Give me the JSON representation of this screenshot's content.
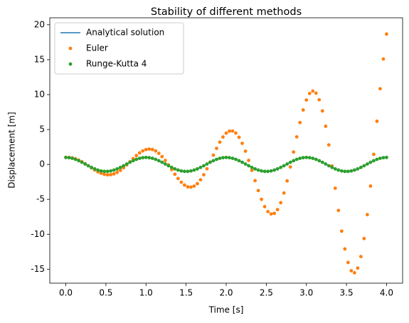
{
  "chart_data": {
    "type": "line",
    "title": "Stability of different methods",
    "xlabel": "Time [s]",
    "ylabel": "Displacement [m]",
    "x": [
      0,
      0.04,
      0.08,
      0.12,
      0.16,
      0.2,
      0.24,
      0.28,
      0.32,
      0.36,
      0.4,
      0.44,
      0.48,
      0.52,
      0.56,
      0.6,
      0.64,
      0.68,
      0.72,
      0.76,
      0.8,
      0.84,
      0.88,
      0.92,
      0.96,
      1,
      1.04,
      1.08,
      1.12,
      1.16,
      1.2,
      1.24,
      1.28,
      1.32,
      1.36,
      1.4,
      1.44,
      1.48,
      1.52,
      1.56,
      1.6,
      1.64,
      1.68,
      1.72,
      1.76,
      1.8,
      1.84,
      1.88,
      1.92,
      1.96,
      2,
      2.04,
      2.08,
      2.12,
      2.16,
      2.2,
      2.24,
      2.28,
      2.32,
      2.36,
      2.4,
      2.44,
      2.48,
      2.52,
      2.56,
      2.6,
      2.64,
      2.68,
      2.72,
      2.76,
      2.8,
      2.84,
      2.88,
      2.92,
      2.96,
      3,
      3.04,
      3.08,
      3.12,
      3.16,
      3.2,
      3.24,
      3.28,
      3.32,
      3.36,
      3.4,
      3.44,
      3.48,
      3.52,
      3.56,
      3.6,
      3.64,
      3.68,
      3.72,
      3.76,
      3.8,
      3.84,
      3.88,
      3.92,
      3.96,
      4
    ],
    "series": [
      {
        "name": "Analytical solution",
        "color": "#1f77b4",
        "style": "line",
        "values": [
          1,
          0.969,
          0.876,
          0.729,
          0.536,
          0.309,
          0.063,
          -0.187,
          -0.426,
          -0.637,
          -0.809,
          -0.93,
          -0.992,
          -0.992,
          -0.93,
          -0.809,
          -0.637,
          -0.426,
          -0.187,
          0.063,
          0.309,
          0.536,
          0.729,
          0.876,
          0.969,
          1,
          0.969,
          0.876,
          0.729,
          0.536,
          0.309,
          0.063,
          -0.187,
          -0.426,
          -0.637,
          -0.809,
          -0.93,
          -0.992,
          -0.992,
          -0.93,
          -0.809,
          -0.637,
          -0.426,
          -0.187,
          0.063,
          0.309,
          0.536,
          0.729,
          0.876,
          0.969,
          1,
          0.969,
          0.876,
          0.729,
          0.536,
          0.309,
          0.063,
          -0.187,
          -0.426,
          -0.637,
          -0.809,
          -0.93,
          -0.992,
          -0.992,
          -0.93,
          -0.809,
          -0.637,
          -0.426,
          -0.187,
          0.063,
          0.309,
          0.536,
          0.729,
          0.876,
          0.969,
          1,
          0.969,
          0.876,
          0.729,
          0.536,
          0.309,
          0.063,
          -0.187,
          -0.426,
          -0.637,
          -0.809,
          -0.93,
          -0.992,
          -0.992,
          -0.93,
          -0.809,
          -0.637,
          -0.426,
          -0.187,
          0.063,
          0.309,
          0.536,
          0.729,
          0.876,
          0.969,
          1
        ]
      },
      {
        "name": "Euler",
        "color": "#ff7f0e",
        "style": "points",
        "values": [
          1,
          1,
          0.94,
          0.81,
          0.62,
          0.39,
          0.11,
          -0.19,
          -0.5,
          -0.79,
          -1.06,
          -1.27,
          -1.42,
          -1.49,
          -1.46,
          -1.35,
          -1.14,
          -0.85,
          -0.48,
          -0.06,
          0.39,
          0.84,
          1.27,
          1.65,
          1.94,
          2.13,
          2.2,
          2.14,
          1.93,
          1.59,
          1.13,
          0.57,
          -0.07,
          -0.74,
          -1.4,
          -2.02,
          -2.55,
          -2.95,
          -3.2,
          -3.25,
          -3.1,
          -2.75,
          -2.2,
          -1.48,
          -0.62,
          0.34,
          1.33,
          2.3,
          3.19,
          3.93,
          4.48,
          4.77,
          4.78,
          4.49,
          3.89,
          3.02,
          1.9,
          0.58,
          -0.85,
          -2.32,
          -3.74,
          -5,
          -6.04,
          -6.75,
          -7.09,
          -7,
          -6.46,
          -5.48,
          -4.09,
          -2.36,
          -0.36,
          1.78,
          3.95,
          6,
          7.8,
          9.23,
          10.16,
          10.51,
          10.21,
          9.26,
          7.66,
          5.47,
          2.8,
          -0.22,
          -3.41,
          -6.59,
          -9.55,
          -12.1,
          -14.04,
          -15.22,
          -15.51,
          -14.84,
          -13.19,
          -10.61,
          -7.19,
          -3.1,
          1.45,
          6.19,
          10.84,
          15.1,
          18.67
        ]
      },
      {
        "name": "Runge-Kutta 4",
        "color": "#2ca02c",
        "style": "points",
        "values": [
          1,
          0.969,
          0.876,
          0.729,
          0.536,
          0.309,
          0.063,
          -0.187,
          -0.426,
          -0.637,
          -0.809,
          -0.93,
          -0.992,
          -0.992,
          -0.93,
          -0.809,
          -0.637,
          -0.426,
          -0.187,
          0.063,
          0.309,
          0.536,
          0.729,
          0.876,
          0.969,
          1,
          0.969,
          0.876,
          0.729,
          0.536,
          0.309,
          0.063,
          -0.187,
          -0.426,
          -0.637,
          -0.809,
          -0.93,
          -0.992,
          -0.992,
          -0.93,
          -0.809,
          -0.637,
          -0.426,
          -0.187,
          0.063,
          0.309,
          0.536,
          0.729,
          0.876,
          0.969,
          1,
          0.969,
          0.876,
          0.729,
          0.536,
          0.309,
          0.063,
          -0.187,
          -0.426,
          -0.637,
          -0.809,
          -0.93,
          -0.992,
          -0.992,
          -0.93,
          -0.809,
          -0.637,
          -0.426,
          -0.187,
          0.063,
          0.309,
          0.536,
          0.729,
          0.876,
          0.969,
          1,
          0.969,
          0.876,
          0.729,
          0.536,
          0.309,
          0.063,
          -0.187,
          -0.426,
          -0.637,
          -0.809,
          -0.93,
          -0.992,
          -0.992,
          -0.93,
          -0.809,
          -0.637,
          -0.426,
          -0.187,
          0.063,
          0.309,
          0.536,
          0.729,
          0.876,
          0.969,
          1
        ]
      }
    ],
    "xlim": [
      -0.2,
      4.2
    ],
    "ylim": [
      -17,
      21
    ],
    "xticks": [
      {
        "value": 0,
        "label": "0.0"
      },
      {
        "value": 0.5,
        "label": "0.5"
      },
      {
        "value": 1,
        "label": "1.0"
      },
      {
        "value": 1.5,
        "label": "1.5"
      },
      {
        "value": 2,
        "label": "2.0"
      },
      {
        "value": 2.5,
        "label": "2.5"
      },
      {
        "value": 3,
        "label": "3.0"
      },
      {
        "value": 3.5,
        "label": "3.5"
      },
      {
        "value": 4,
        "label": "4.0"
      }
    ],
    "yticks": [
      -15,
      -10,
      -5,
      0,
      5,
      10,
      15,
      20
    ],
    "grid": false,
    "legend": "upper left"
  }
}
